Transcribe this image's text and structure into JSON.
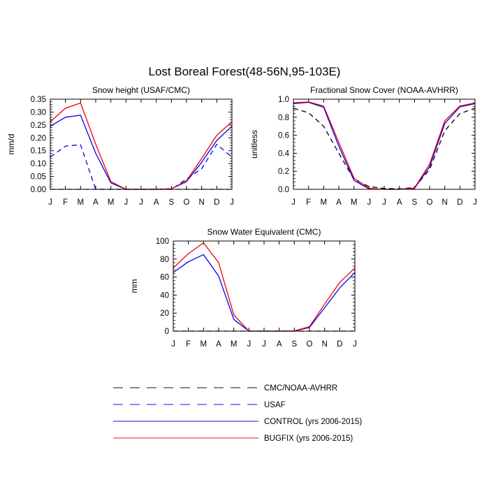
{
  "figure_title": "Lost Boreal Forest(48-56N,95-103E)",
  "chart_data": [
    {
      "type": "line",
      "title": "Snow height (USAF/CMC)",
      "ylabel": "mm/d",
      "xlabel": "",
      "categories": [
        "J",
        "F",
        "M",
        "A",
        "M",
        "J",
        "J",
        "A",
        "S",
        "O",
        "N",
        "D",
        "J"
      ],
      "ylim": [
        0,
        0.35
      ],
      "yticks": [
        "0.00",
        "0.05",
        "0.10",
        "0.15",
        "0.20",
        "0.25",
        "0.30",
        "0.35"
      ],
      "series": [
        {
          "name": "CMC/NOAA-AVHRR",
          "color": "#000000",
          "dash": "dash",
          "values": [
            0,
            0,
            0,
            0,
            0,
            0,
            0,
            0,
            0,
            0,
            0,
            0,
            0
          ]
        },
        {
          "name": "USAF",
          "color": "#0000ee",
          "dash": "dash",
          "values": [
            0.125,
            0.168,
            0.173,
            0,
            0,
            0,
            0,
            0,
            0,
            0.04,
            0.08,
            0.175,
            0.125
          ]
        },
        {
          "name": "CONTROL (yrs 2006-2015)",
          "color": "#0000ee",
          "dash": "solid",
          "values": [
            0.245,
            0.28,
            0.288,
            0.14,
            0.025,
            0,
            0,
            0,
            0.002,
            0.03,
            0.105,
            0.19,
            0.245
          ]
        },
        {
          "name": "BUGFIX (yrs 2006-2015)",
          "color": "#ee0000",
          "dash": "solid",
          "values": [
            0.262,
            0.315,
            0.335,
            0.175,
            0.03,
            0,
            0,
            0,
            0.002,
            0.033,
            0.12,
            0.21,
            0.262
          ]
        }
      ]
    },
    {
      "type": "line",
      "title": "Fractional Snow Cover (NOAA-AVHRR)",
      "ylabel": "unitless",
      "xlabel": "",
      "categories": [
        "J",
        "F",
        "M",
        "A",
        "M",
        "J",
        "J",
        "A",
        "S",
        "O",
        "N",
        "D",
        "J"
      ],
      "ylim": [
        0,
        1.0
      ],
      "yticks": [
        "0.0",
        "0.2",
        "0.4",
        "0.6",
        "0.8",
        "1.0"
      ],
      "series": [
        {
          "name": "CMC/NOAA-AVHRR",
          "color": "#000000",
          "dash": "dash",
          "values": [
            0.9,
            0.85,
            0.7,
            0.4,
            0.11,
            0.03,
            0.01,
            0.005,
            0.02,
            0.22,
            0.65,
            0.84,
            0.9
          ]
        },
        {
          "name": "CONTROL (yrs 2006-2015)",
          "color": "#0000ee",
          "dash": "solid",
          "values": [
            0.95,
            0.965,
            0.91,
            0.48,
            0.1,
            0.005,
            0,
            0,
            0.01,
            0.25,
            0.73,
            0.915,
            0.95
          ]
        },
        {
          "name": "BUGFIX (yrs 2006-2015)",
          "color": "#ee0000",
          "dash": "solid",
          "values": [
            0.96,
            0.97,
            0.925,
            0.52,
            0.125,
            0.01,
            0,
            0,
            0.015,
            0.28,
            0.76,
            0.925,
            0.96
          ]
        }
      ]
    },
    {
      "type": "line",
      "title": "Snow Water Equivalent (CMC)",
      "ylabel": "mm",
      "xlabel": "",
      "categories": [
        "J",
        "F",
        "M",
        "A",
        "M",
        "J",
        "J",
        "A",
        "S",
        "O",
        "N",
        "D",
        "J"
      ],
      "ylim": [
        0,
        100
      ],
      "yticks": [
        "0",
        "20",
        "40",
        "60",
        "80",
        "100"
      ],
      "series": [
        {
          "name": "CMC/NOAA-AVHRR",
          "color": "#000000",
          "dash": "dash",
          "values": [
            0,
            0,
            0,
            0,
            0,
            0,
            0,
            0,
            0,
            0,
            0,
            0,
            0
          ]
        },
        {
          "name": "CONTROL (yrs 2006-2015)",
          "color": "#0000ee",
          "dash": "solid",
          "values": [
            65,
            77,
            85,
            61,
            13,
            0,
            0,
            0,
            0,
            4,
            26,
            48,
            65
          ]
        },
        {
          "name": "BUGFIX (yrs 2006-2015)",
          "color": "#ee0000",
          "dash": "solid",
          "values": [
            70,
            86,
            98,
            76,
            18,
            0,
            0,
            0,
            0.3,
            5,
            30,
            54,
            70
          ]
        }
      ]
    }
  ],
  "legend": [
    {
      "label": "CMC/NOAA-AVHRR",
      "color": "#000000",
      "dash": "dash"
    },
    {
      "label": "USAF",
      "color": "#0000ee",
      "dash": "dash"
    },
    {
      "label": "CONTROL (yrs 2006-2015)",
      "color": "#0000ee",
      "dash": "solid"
    },
    {
      "label": "BUGFIX (yrs 2006-2015)",
      "color": "#ee0000",
      "dash": "solid"
    }
  ]
}
